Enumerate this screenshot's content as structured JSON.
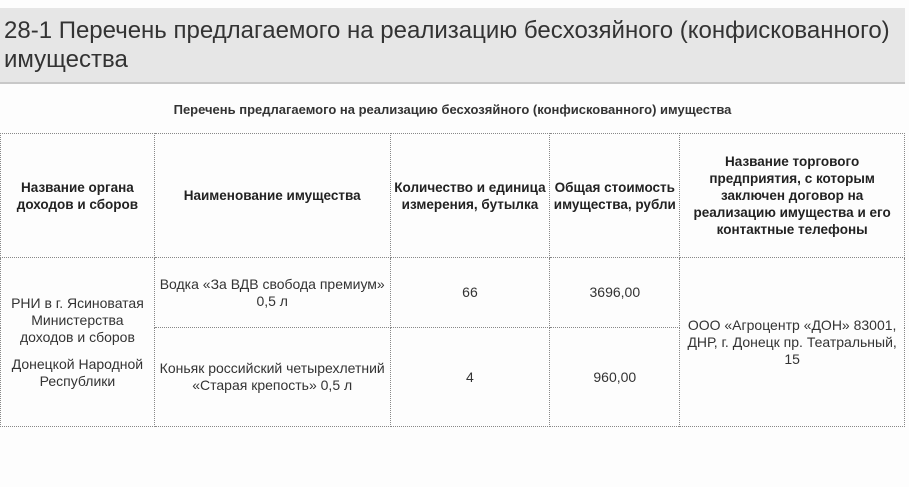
{
  "page_title": "28-1 Перечень предлагаемого на реализацию бесхозяйного (конфискованного) имущества",
  "table_caption": "Перечень предлагаемого на реализацию бесхозяйного (конфискованного) имущества",
  "columns": [
    "Название органа доходов и сборов",
    "Наименование имущества",
    "Количество и единица измерения, бутылка",
    "Общая стоимость имущества, рубли",
    "Название торгового предприятия, с которым заключен договор на реализацию имущества и его контактные телефоны"
  ],
  "organ": {
    "line1": "РНИ в г. Ясиноватая Министерства доходов и сборов",
    "line2": "Донецкой Народной Республики"
  },
  "rows": [
    {
      "name": "Водка «За ВДВ свобода премиум» 0,5 л",
      "qty": "66",
      "cost": "3696,00"
    },
    {
      "name": "Коньяк российский четырехлетний «Старая крепость» 0,5 л",
      "qty": "4",
      "cost": "960,00"
    }
  ],
  "enterprise": "ООО «Агроцентр «ДОН» 83001, ДНР, г. Донецк  пр. Театральный, 15"
}
